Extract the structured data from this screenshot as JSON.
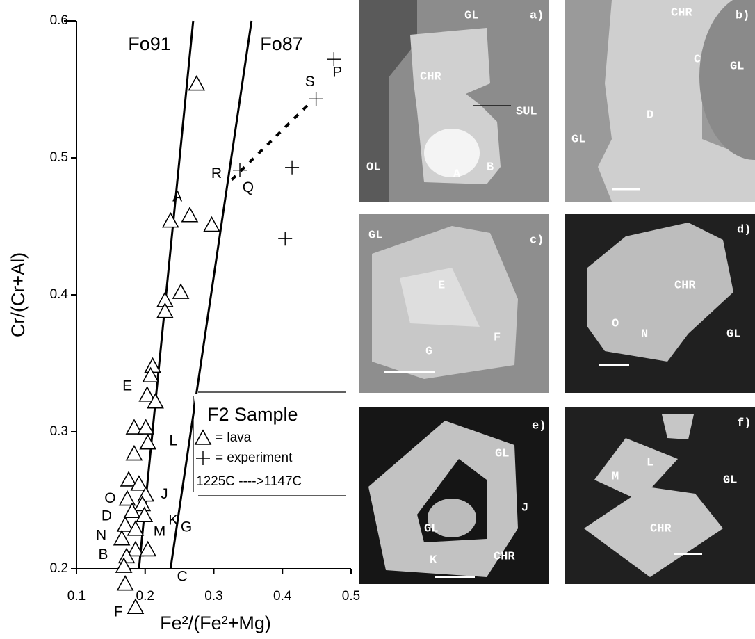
{
  "chart_data": {
    "type": "scatter",
    "x_label": "Fe²/(Fe²+Mg)",
    "y_label": "Cr/(Cr+Al)",
    "xlim": [
      0.1,
      0.5
    ],
    "xticks": [
      0.1,
      0.2,
      0.3,
      0.4,
      0.5
    ],
    "ylim": [
      0.2,
      0.6
    ],
    "yticks": [
      0.2,
      0.3,
      0.4,
      0.5,
      0.6
    ],
    "legend_title": "F2 Sample",
    "legend_note": "1225C ---->1147C",
    "series": [
      {
        "name": "= lava",
        "marker": "triangle",
        "color": "#000",
        "x": [
          0.275,
          0.237,
          0.265,
          0.297,
          0.252,
          0.229,
          0.229,
          0.211,
          0.208,
          0.203,
          0.215,
          0.184,
          0.201,
          0.204,
          0.184,
          0.176,
          0.191,
          0.201,
          0.174,
          0.196,
          0.181,
          0.199,
          0.171,
          0.186,
          0.166,
          0.186,
          0.204,
          0.173,
          0.169,
          0.171,
          0.186
        ],
        "y": [
          0.554,
          0.454,
          0.458,
          0.451,
          0.402,
          0.396,
          0.388,
          0.348,
          0.341,
          0.327,
          0.322,
          0.303,
          0.303,
          0.292,
          0.284,
          0.265,
          0.262,
          0.254,
          0.251,
          0.247,
          0.242,
          0.239,
          0.232,
          0.229,
          0.222,
          0.214,
          0.214,
          0.209,
          0.202,
          0.189,
          0.172
        ]
      },
      {
        "name": "= experiment",
        "marker": "cross",
        "color": "#000",
        "x": [
          0.475,
          0.449,
          0.338,
          0.414,
          0.404
        ],
        "y": [
          0.572,
          0.543,
          0.491,
          0.493,
          0.441
        ]
      }
    ],
    "lines": [
      {
        "name": "Fo91",
        "x": [
          0.191,
          0.27
        ],
        "y": [
          0.2,
          0.6
        ]
      },
      {
        "name": "Fo87",
        "x": [
          0.237,
          0.355
        ],
        "y": [
          0.2,
          0.6
        ]
      }
    ],
    "trend": {
      "x": [
        0.326,
        0.44
      ],
      "y": [
        0.484,
        0.54
      ]
    },
    "annotations": [
      {
        "text": "A",
        "x": 0.247,
        "y": 0.471
      },
      {
        "text": "E",
        "x": 0.174,
        "y": 0.333
      },
      {
        "text": "L",
        "x": 0.241,
        "y": 0.293
      },
      {
        "text": "O",
        "x": 0.149,
        "y": 0.251
      },
      {
        "text": "D",
        "x": 0.144,
        "y": 0.238
      },
      {
        "text": "N",
        "x": 0.136,
        "y": 0.224
      },
      {
        "text": "B",
        "x": 0.139,
        "y": 0.21
      },
      {
        "text": "F",
        "x": 0.161,
        "y": 0.168
      },
      {
        "text": "J",
        "x": 0.228,
        "y": 0.254
      },
      {
        "text": "K",
        "x": 0.241,
        "y": 0.235
      },
      {
        "text": "M",
        "x": 0.221,
        "y": 0.227
      },
      {
        "text": "G",
        "x": 0.26,
        "y": 0.23
      },
      {
        "text": "C",
        "x": 0.254,
        "y": 0.194
      },
      {
        "text": "R",
        "x": 0.304,
        "y": 0.488
      },
      {
        "text": "Q",
        "x": 0.35,
        "y": 0.478
      },
      {
        "text": "S",
        "x": 0.44,
        "y": 0.555
      },
      {
        "text": "P",
        "x": 0.48,
        "y": 0.562
      }
    ]
  },
  "panels": [
    {
      "tag": "a)",
      "texts": [
        "GL",
        "CHR",
        "SUL",
        "OL",
        "A",
        "B"
      ]
    },
    {
      "tag": "b)",
      "texts": [
        "CHR",
        "C",
        "GL",
        "D",
        "GL"
      ]
    },
    {
      "tag": "c)",
      "texts": [
        "GL",
        "E",
        "F",
        "G"
      ]
    },
    {
      "tag": "d)",
      "texts": [
        "CHR",
        "O",
        "N",
        "GL"
      ]
    },
    {
      "tag": "e)",
      "texts": [
        "GL",
        "J",
        "GL",
        "K",
        "CHR"
      ]
    },
    {
      "tag": "f)",
      "texts": [
        "M",
        "L",
        "GL",
        "CHR"
      ]
    }
  ]
}
